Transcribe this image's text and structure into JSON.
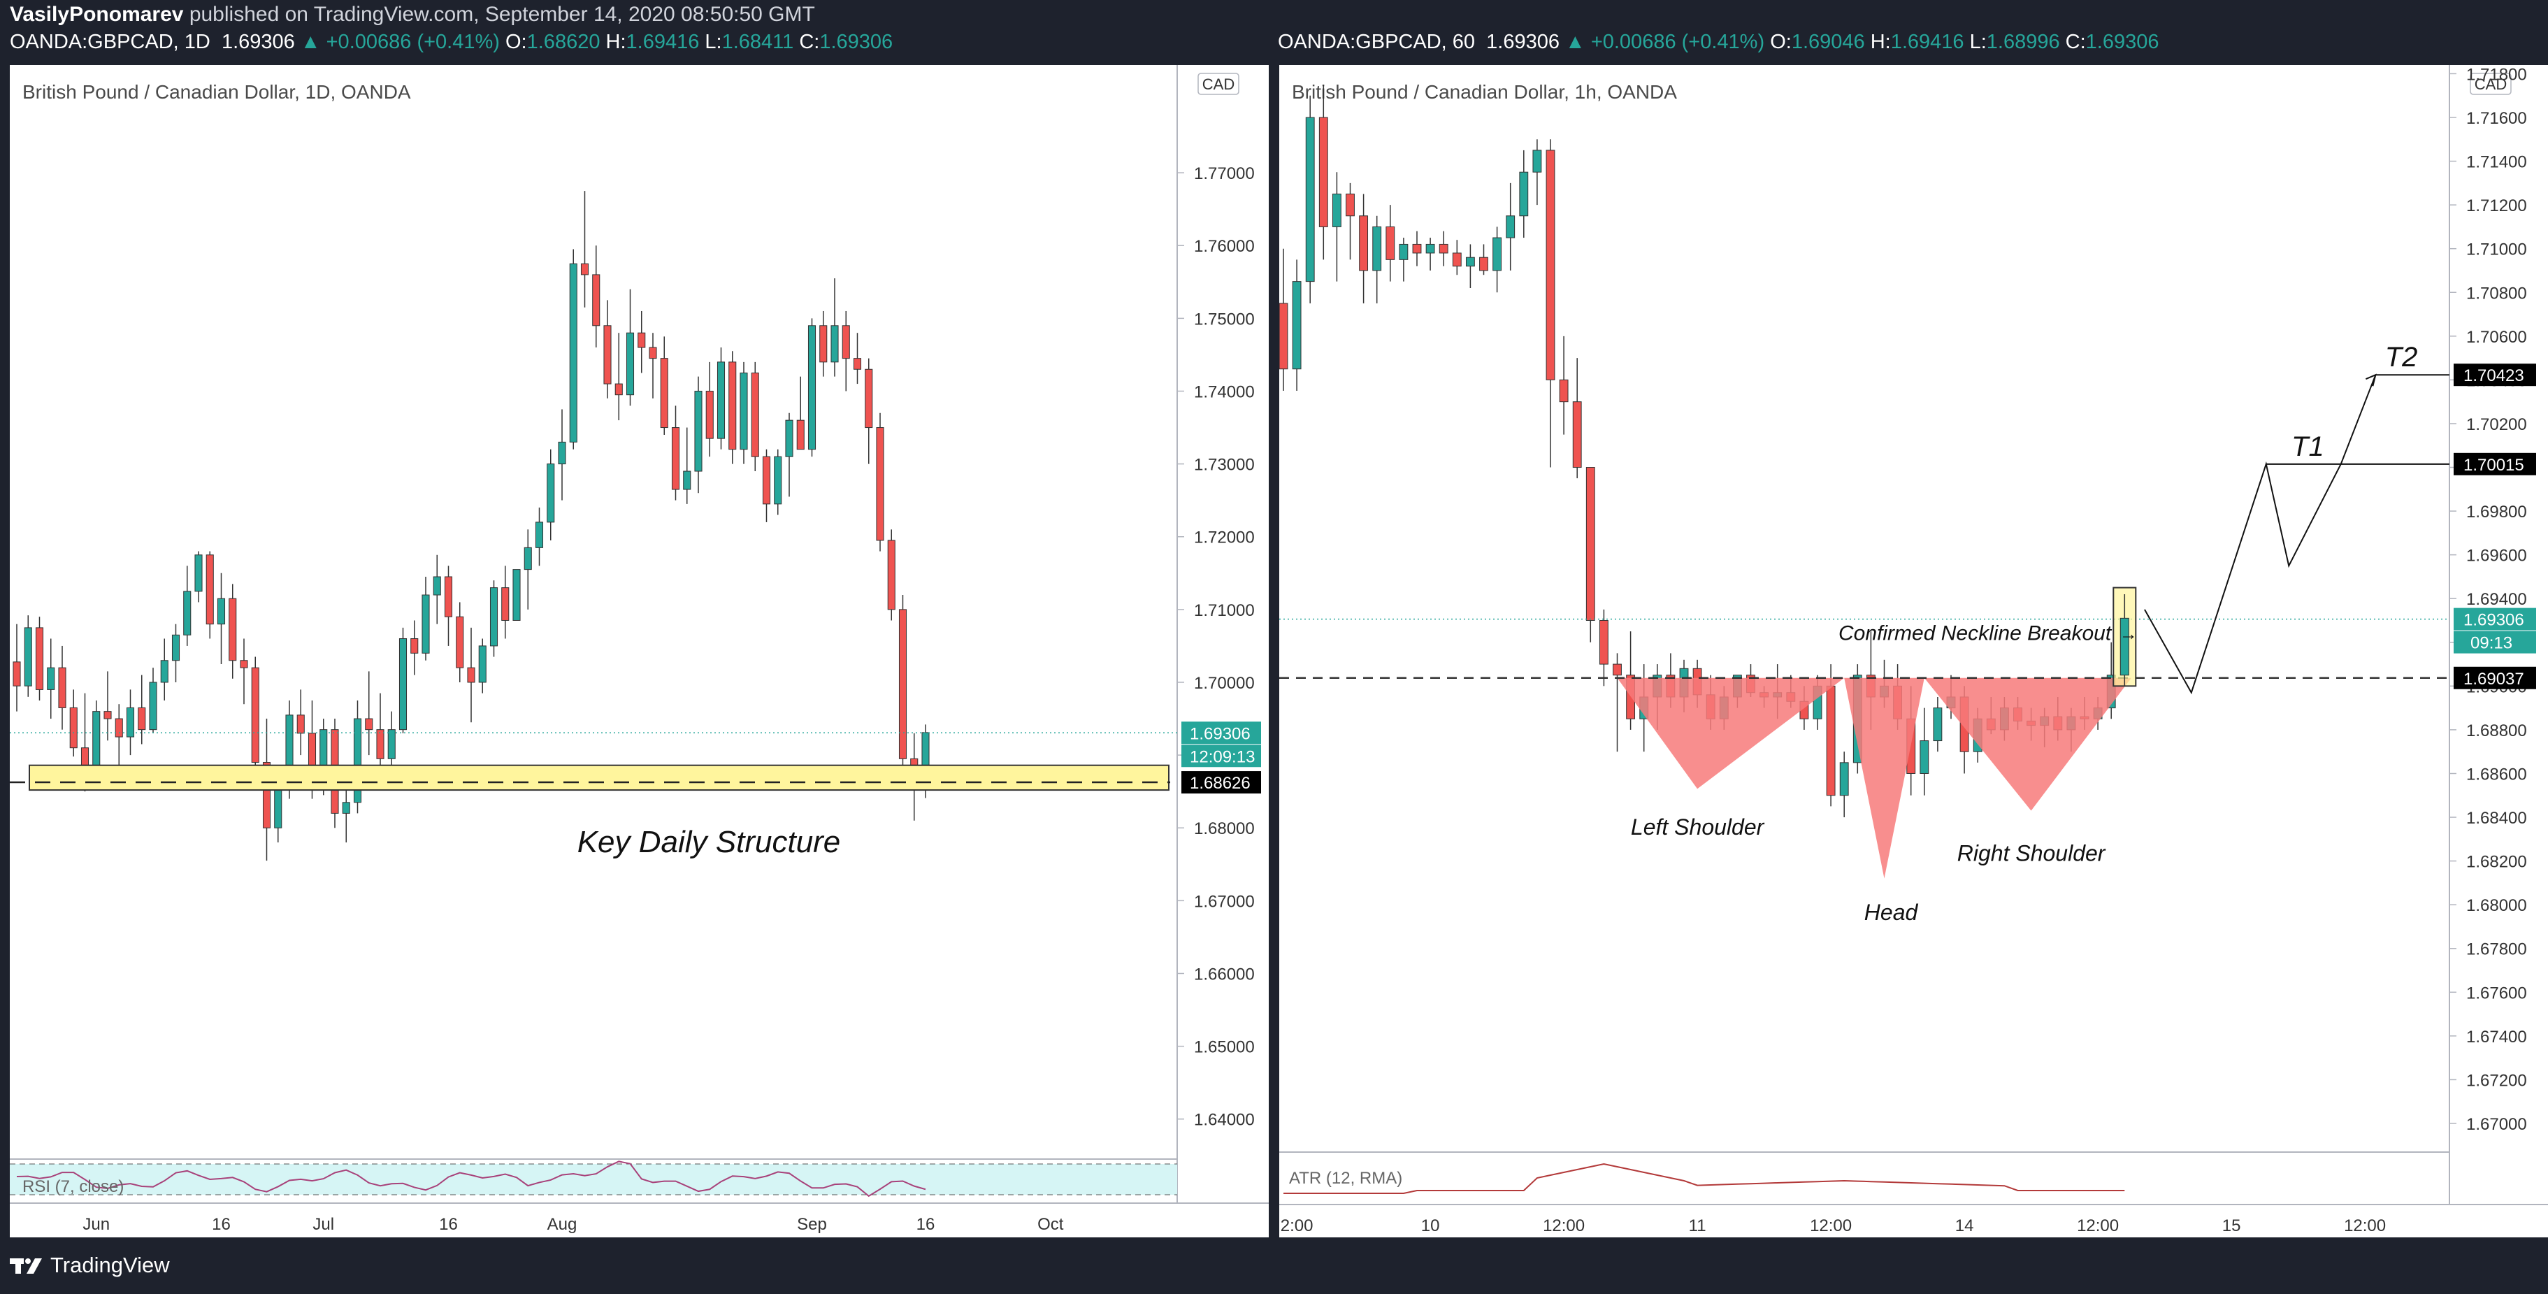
{
  "header": {
    "author": "VasilyPonomarev",
    "published": "published on TradingView.com, September 14, 2020 08:50:50 GMT"
  },
  "left_symbol": {
    "ticker": "OANDA:GBPCAD, 1D",
    "price": "1.69306",
    "change": "+0.00686 (+0.41%)",
    "o_label": "O:",
    "o": "1.68620",
    "h_label": "H:",
    "h": "1.69416",
    "l_label": "L:",
    "l": "1.68411",
    "c_label": "C:",
    "c": "1.69306"
  },
  "right_symbol": {
    "ticker": "OANDA:GBPCAD, 60",
    "price": "1.69306",
    "change": "+0.00686 (+0.41%)",
    "o_label": "O:",
    "o": "1.69046",
    "h_label": "H:",
    "h": "1.69416",
    "l_label": "L:",
    "l": "1.68996",
    "c_label": "C:",
    "c": "1.69306"
  },
  "footer": {
    "brand": "TradingView"
  },
  "colors": {
    "up": "#26a69a",
    "down": "#ef5350",
    "zone": "#fff59d",
    "pattern": "#f77a7a"
  },
  "chart_data": [
    {
      "type": "candlestick",
      "title": "British Pound / Canadian Dollar, 1D, OANDA",
      "currency": "CAD",
      "yticks": [
        "1.64000",
        "1.65000",
        "1.66000",
        "1.67000",
        "1.68000",
        "1.69000",
        "1.70000",
        "1.71000",
        "1.72000",
        "1.73000",
        "1.74000",
        "1.75000",
        "1.76000",
        "1.77000"
      ],
      "ylim": [
        1.6345,
        1.78
      ],
      "xticks": [
        {
          "label": "Jun",
          "i": 7
        },
        {
          "label": "16",
          "i": 18
        },
        {
          "label": "Jul",
          "i": 27
        },
        {
          "label": "16",
          "i": 38
        },
        {
          "label": "Aug",
          "i": 48
        },
        {
          "label": "Sep",
          "i": 70
        },
        {
          "label": "16",
          "i": 80
        },
        {
          "label": "Oct",
          "i": 91
        }
      ],
      "price_tags": [
        {
          "value": "1.69306",
          "sub": "12:09:13",
          "kind": "last"
        },
        {
          "value": "1.68626",
          "kind": "level"
        }
      ],
      "annotations": {
        "zone_label": "Key Daily Structure"
      },
      "zone": [
        1.6852,
        1.6886
      ],
      "level": 1.68626,
      "indicator": {
        "label": "RSI (7, close)"
      },
      "ohlc": [
        [
          1.7028,
          1.708,
          1.696,
          1.6995
        ],
        [
          1.6995,
          1.7092,
          1.698,
          1.7075
        ],
        [
          1.7075,
          1.709,
          1.6975,
          1.699
        ],
        [
          1.699,
          1.706,
          1.695,
          1.702
        ],
        [
          1.702,
          1.705,
          1.6935,
          1.6965
        ],
        [
          1.6965,
          1.699,
          1.6898,
          1.691
        ],
        [
          1.691,
          1.6985,
          1.685,
          1.687
        ],
        [
          1.687,
          1.6975,
          1.686,
          1.696
        ],
        [
          1.696,
          1.7015,
          1.692,
          1.695
        ],
        [
          1.695,
          1.697,
          1.6885,
          1.6925
        ],
        [
          1.6925,
          1.699,
          1.69,
          1.6965
        ],
        [
          1.6965,
          1.701,
          1.6915,
          1.6935
        ],
        [
          1.6935,
          1.702,
          1.693,
          1.7
        ],
        [
          1.7,
          1.706,
          1.6975,
          1.703
        ],
        [
          1.703,
          1.708,
          1.7,
          1.7065
        ],
        [
          1.7065,
          1.716,
          1.705,
          1.7125
        ],
        [
          1.7125,
          1.718,
          1.711,
          1.7175
        ],
        [
          1.7175,
          1.718,
          1.706,
          1.708
        ],
        [
          1.708,
          1.715,
          1.7025,
          1.7115
        ],
        [
          1.7115,
          1.7135,
          1.7005,
          1.703
        ],
        [
          1.703,
          1.706,
          1.697,
          1.702
        ],
        [
          1.702,
          1.7035,
          1.6875,
          1.689
        ],
        [
          1.689,
          1.695,
          1.6755,
          1.68
        ],
        [
          1.68,
          1.688,
          1.678,
          1.686
        ],
        [
          1.686,
          1.6975,
          1.684,
          1.6955
        ],
        [
          1.6955,
          1.699,
          1.69,
          1.693
        ],
        [
          1.693,
          1.6975,
          1.684,
          1.686
        ],
        [
          1.686,
          1.695,
          1.6845,
          1.6935
        ],
        [
          1.6935,
          1.695,
          1.68,
          1.682
        ],
        [
          1.682,
          1.687,
          1.678,
          1.6835
        ],
        [
          1.6835,
          1.6975,
          1.682,
          1.695
        ],
        [
          1.695,
          1.7015,
          1.69,
          1.6935
        ],
        [
          1.6935,
          1.6985,
          1.688,
          1.6895
        ],
        [
          1.6895,
          1.696,
          1.6885,
          1.6935
        ],
        [
          1.6935,
          1.7075,
          1.693,
          1.706
        ],
        [
          1.706,
          1.7085,
          1.701,
          1.704
        ],
        [
          1.704,
          1.7145,
          1.703,
          1.712
        ],
        [
          1.712,
          1.7175,
          1.708,
          1.7145
        ],
        [
          1.7145,
          1.716,
          1.705,
          1.709
        ],
        [
          1.709,
          1.711,
          1.7,
          1.702
        ],
        [
          1.702,
          1.7075,
          1.6945,
          1.7
        ],
        [
          1.7,
          1.706,
          1.6985,
          1.705
        ],
        [
          1.705,
          1.714,
          1.7035,
          1.713
        ],
        [
          1.713,
          1.716,
          1.706,
          1.7085
        ],
        [
          1.7085,
          1.7155,
          1.7085,
          1.7155
        ],
        [
          1.7155,
          1.721,
          1.71,
          1.7185
        ],
        [
          1.7185,
          1.724,
          1.716,
          1.722
        ],
        [
          1.722,
          1.732,
          1.7195,
          1.73
        ],
        [
          1.73,
          1.7375,
          1.725,
          1.733
        ],
        [
          1.733,
          1.7595,
          1.732,
          1.7575
        ],
        [
          1.7575,
          1.7675,
          1.7515,
          1.756
        ],
        [
          1.756,
          1.76,
          1.746,
          1.749
        ],
        [
          1.749,
          1.7525,
          1.739,
          1.741
        ],
        [
          1.741,
          1.748,
          1.736,
          1.7395
        ],
        [
          1.7395,
          1.754,
          1.738,
          1.748
        ],
        [
          1.748,
          1.751,
          1.7425,
          1.746
        ],
        [
          1.746,
          1.748,
          1.739,
          1.7445
        ],
        [
          1.7445,
          1.7475,
          1.734,
          1.735
        ],
        [
          1.735,
          1.738,
          1.725,
          1.7265
        ],
        [
          1.7265,
          1.735,
          1.7245,
          1.729
        ],
        [
          1.729,
          1.742,
          1.726,
          1.74
        ],
        [
          1.74,
          1.744,
          1.731,
          1.7335
        ],
        [
          1.7335,
          1.746,
          1.732,
          1.744
        ],
        [
          1.744,
          1.7455,
          1.73,
          1.732
        ],
        [
          1.732,
          1.744,
          1.73,
          1.7425
        ],
        [
          1.7425,
          1.744,
          1.729,
          1.731
        ],
        [
          1.731,
          1.732,
          1.722,
          1.7245
        ],
        [
          1.7245,
          1.732,
          1.723,
          1.731
        ],
        [
          1.731,
          1.737,
          1.7255,
          1.736
        ],
        [
          1.736,
          1.742,
          1.733,
          1.732
        ],
        [
          1.732,
          1.75,
          1.731,
          1.749
        ],
        [
          1.749,
          1.751,
          1.742,
          1.744
        ],
        [
          1.744,
          1.7555,
          1.742,
          1.749
        ],
        [
          1.749,
          1.751,
          1.74,
          1.7445
        ],
        [
          1.7445,
          1.748,
          1.741,
          1.743
        ],
        [
          1.743,
          1.7445,
          1.73,
          1.735
        ],
        [
          1.735,
          1.737,
          1.718,
          1.7195
        ],
        [
          1.7195,
          1.721,
          1.7085,
          1.71
        ],
        [
          1.71,
          1.712,
          1.688,
          1.6895
        ],
        [
          1.6895,
          1.693,
          1.681,
          1.686
        ],
        [
          1.6862,
          1.6942,
          1.6841,
          1.6931
        ]
      ]
    },
    {
      "type": "candlestick",
      "title": "British Pound / Canadian Dollar, 1h, OANDA",
      "currency": "CAD",
      "yticks": [
        "1.67000",
        "1.67200",
        "1.67400",
        "1.67600",
        "1.67800",
        "1.68000",
        "1.68200",
        "1.68400",
        "1.68600",
        "1.68800",
        "1.69000",
        "1.69200",
        "1.69400",
        "1.69600",
        "1.69800",
        "1.70000",
        "1.70200",
        "1.70400",
        "1.70600",
        "1.70800",
        "1.71000",
        "1.71200",
        "1.71400",
        "1.71600",
        "1.71800"
      ],
      "ylim": [
        1.6687,
        1.7185
      ],
      "xticks": [
        {
          "label": "2:00",
          "i": 1
        },
        {
          "label": "10",
          "i": 11
        },
        {
          "label": "12:00",
          "i": 21
        },
        {
          "label": "11",
          "i": 31
        },
        {
          "label": "12:00",
          "i": 41
        },
        {
          "label": "14",
          "i": 51
        },
        {
          "label": "12:00",
          "i": 61
        },
        {
          "label": "15",
          "i": 71
        },
        {
          "label": "12:00",
          "i": 81
        }
      ],
      "price_tags": [
        {
          "value": "1.70423",
          "kind": "level"
        },
        {
          "value": "1.70015",
          "kind": "level"
        },
        {
          "value": "1.69306",
          "sub": "09:13",
          "kind": "last"
        },
        {
          "value": "1.69037",
          "kind": "level"
        }
      ],
      "annotations": {
        "neckline": "Confirmed Neckline Breakout",
        "left_shoulder": "Left Shoulder",
        "head": "Head",
        "right_shoulder": "Right Shoulder",
        "t1": "T1",
        "t2": "T2"
      },
      "neckline": 1.69037,
      "t1_level": 1.70015,
      "t2_level": 1.70423,
      "indicator": {
        "label": "ATR (12, RMA)"
      },
      "ohlc": [
        [
          1.7075,
          1.71,
          1.7035,
          1.7045
        ],
        [
          1.7045,
          1.7095,
          1.7035,
          1.7085
        ],
        [
          1.7085,
          1.717,
          1.7075,
          1.716
        ],
        [
          1.716,
          1.7175,
          1.7095,
          1.711
        ],
        [
          1.711,
          1.7135,
          1.7085,
          1.7125
        ],
        [
          1.7125,
          1.713,
          1.7095,
          1.7115
        ],
        [
          1.7115,
          1.7125,
          1.7075,
          1.709
        ],
        [
          1.709,
          1.7115,
          1.7075,
          1.711
        ],
        [
          1.711,
          1.712,
          1.7085,
          1.7095
        ],
        [
          1.7095,
          1.7105,
          1.7085,
          1.7102
        ],
        [
          1.7102,
          1.7108,
          1.7092,
          1.7098
        ],
        [
          1.7098,
          1.7105,
          1.709,
          1.7102
        ],
        [
          1.7102,
          1.7108,
          1.7092,
          1.7098
        ],
        [
          1.7098,
          1.7104,
          1.7088,
          1.7092
        ],
        [
          1.7092,
          1.7102,
          1.7082,
          1.7096
        ],
        [
          1.7096,
          1.7102,
          1.7088,
          1.709
        ],
        [
          1.709,
          1.711,
          1.708,
          1.7105
        ],
        [
          1.7105,
          1.713,
          1.709,
          1.7115
        ],
        [
          1.7115,
          1.7145,
          1.7105,
          1.7135
        ],
        [
          1.7135,
          1.715,
          1.712,
          1.7145
        ],
        [
          1.7145,
          1.715,
          1.7,
          1.704
        ],
        [
          1.704,
          1.706,
          1.7015,
          1.703
        ],
        [
          1.703,
          1.705,
          1.6995,
          1.7
        ],
        [
          1.7,
          1.7,
          1.692,
          1.693
        ],
        [
          1.693,
          1.6935,
          1.69,
          1.691
        ],
        [
          1.691,
          1.6915,
          1.687,
          1.6905
        ],
        [
          1.6905,
          1.6925,
          1.688,
          1.6885
        ],
        [
          1.6885,
          1.691,
          1.687,
          1.6895
        ],
        [
          1.6895,
          1.691,
          1.688,
          1.6905
        ],
        [
          1.6905,
          1.6915,
          1.689,
          1.6895
        ],
        [
          1.6895,
          1.6912,
          1.6888,
          1.6908
        ],
        [
          1.6908,
          1.6912,
          1.689,
          1.6896
        ],
        [
          1.6896,
          1.6905,
          1.688,
          1.6885
        ],
        [
          1.6885,
          1.69,
          1.688,
          1.6895
        ],
        [
          1.6895,
          1.6905,
          1.689,
          1.6905
        ],
        [
          1.6905,
          1.691,
          1.6895,
          1.6897
        ],
        [
          1.6897,
          1.69,
          1.689,
          1.6895
        ],
        [
          1.6895,
          1.691,
          1.6885,
          1.6897
        ],
        [
          1.6897,
          1.6905,
          1.689,
          1.6893
        ],
        [
          1.6893,
          1.69,
          1.688,
          1.6885
        ],
        [
          1.6885,
          1.6905,
          1.688,
          1.69
        ],
        [
          1.69,
          1.691,
          1.6845,
          1.685
        ],
        [
          1.685,
          1.687,
          1.684,
          1.6865
        ],
        [
          1.6865,
          1.691,
          1.686,
          1.6905
        ],
        [
          1.6905,
          1.6925,
          1.688,
          1.6895
        ],
        [
          1.6895,
          1.6912,
          1.689,
          1.69
        ],
        [
          1.69,
          1.691,
          1.688,
          1.6885
        ],
        [
          1.6885,
          1.69,
          1.685,
          1.686
        ],
        [
          1.686,
          1.689,
          1.685,
          1.6875
        ],
        [
          1.6875,
          1.6895,
          1.687,
          1.689
        ],
        [
          1.689,
          1.6905,
          1.6885,
          1.6895
        ],
        [
          1.6895,
          1.69,
          1.686,
          1.687
        ],
        [
          1.687,
          1.689,
          1.6865,
          1.6885
        ],
        [
          1.6885,
          1.6895,
          1.6878,
          1.688
        ],
        [
          1.688,
          1.6895,
          1.6875,
          1.689
        ],
        [
          1.689,
          1.6895,
          1.688,
          1.6884
        ],
        [
          1.6884,
          1.689,
          1.6875,
          1.6882
        ],
        [
          1.6882,
          1.689,
          1.6872,
          1.6886
        ],
        [
          1.6886,
          1.6895,
          1.6875,
          1.688
        ],
        [
          1.688,
          1.689,
          1.687,
          1.6886
        ],
        [
          1.6886,
          1.6895,
          1.688,
          1.6885
        ],
        [
          1.6885,
          1.6895,
          1.688,
          1.689
        ],
        [
          1.689,
          1.692,
          1.6885,
          1.6905
        ],
        [
          1.6905,
          1.6942,
          1.69,
          1.6931
        ]
      ]
    }
  ]
}
